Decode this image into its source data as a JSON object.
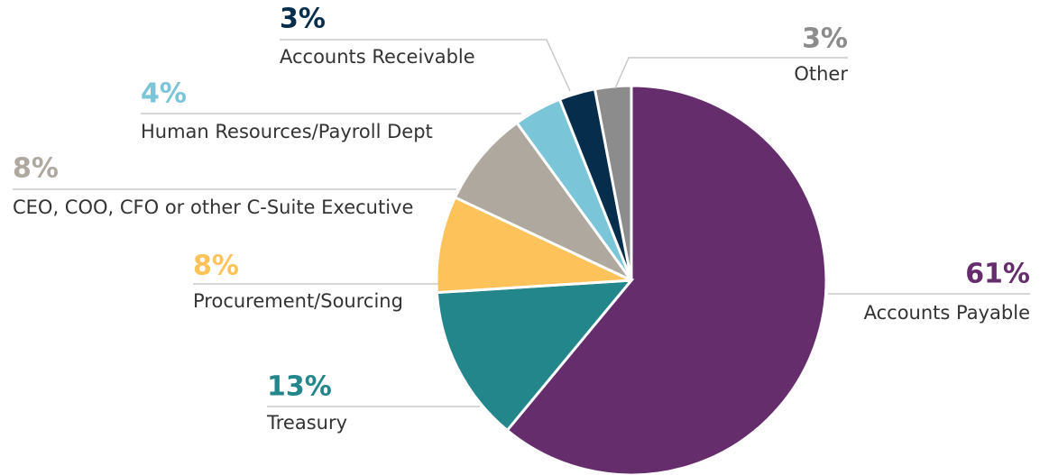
{
  "chart_data": {
    "type": "pie",
    "categories": [
      "Accounts Payable",
      "Treasury",
      "Procurement/Sourcing",
      "CEO, COO, CFO or other C-Suite Executive",
      "Human Resources/Payroll Dept",
      "Accounts Receivable",
      "Other"
    ],
    "values": [
      61,
      13,
      8,
      8,
      4,
      3,
      3
    ],
    "value_labels": [
      "61%",
      "13%",
      "8%",
      "8%",
      "4%",
      "3%",
      "3%"
    ],
    "colors": [
      "#652d6c",
      "#23868b",
      "#fdc25a",
      "#aea89f",
      "#7ac5d8",
      "#062d4c",
      "#8c8c8c"
    ]
  }
}
